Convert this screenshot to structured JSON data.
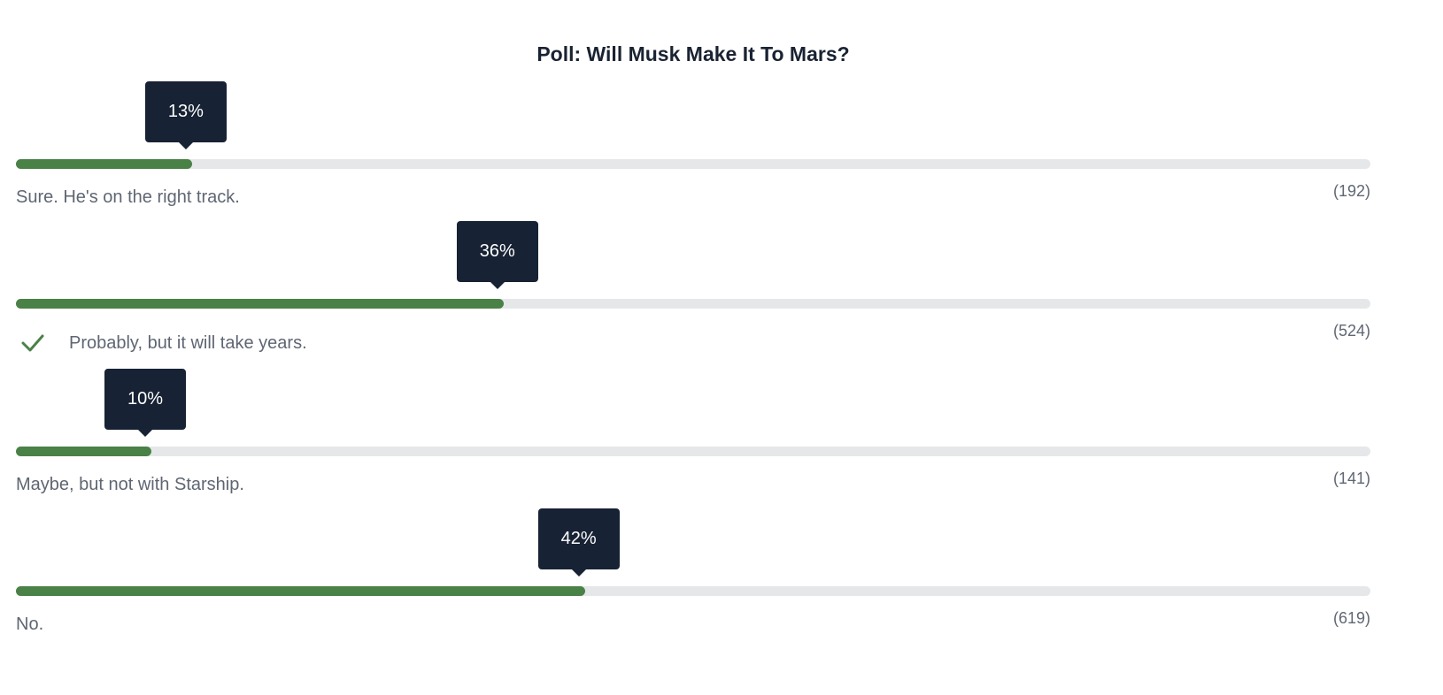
{
  "poll": {
    "title": "Poll: Will Musk Make It To Mars?",
    "colors": {
      "fill": "#4a8147",
      "track": "#e6e7e9",
      "tooltip": "#172234",
      "check": "#4a8147"
    },
    "options": [
      {
        "label": "Sure. He's on the right track.",
        "percent": 13,
        "percent_label": "13%",
        "count": "(192)",
        "selected": false
      },
      {
        "label": "Probably, but it will take years.",
        "percent": 36,
        "percent_label": "36%",
        "count": "(524)",
        "selected": true,
        "icon": "checkmark-icon"
      },
      {
        "label": "Maybe, but not with Starship.",
        "percent": 10,
        "percent_label": "10%",
        "count": "(141)",
        "selected": false
      },
      {
        "label": "No.",
        "percent": 42,
        "percent_label": "42%",
        "count": "(619)",
        "selected": false
      }
    ]
  }
}
